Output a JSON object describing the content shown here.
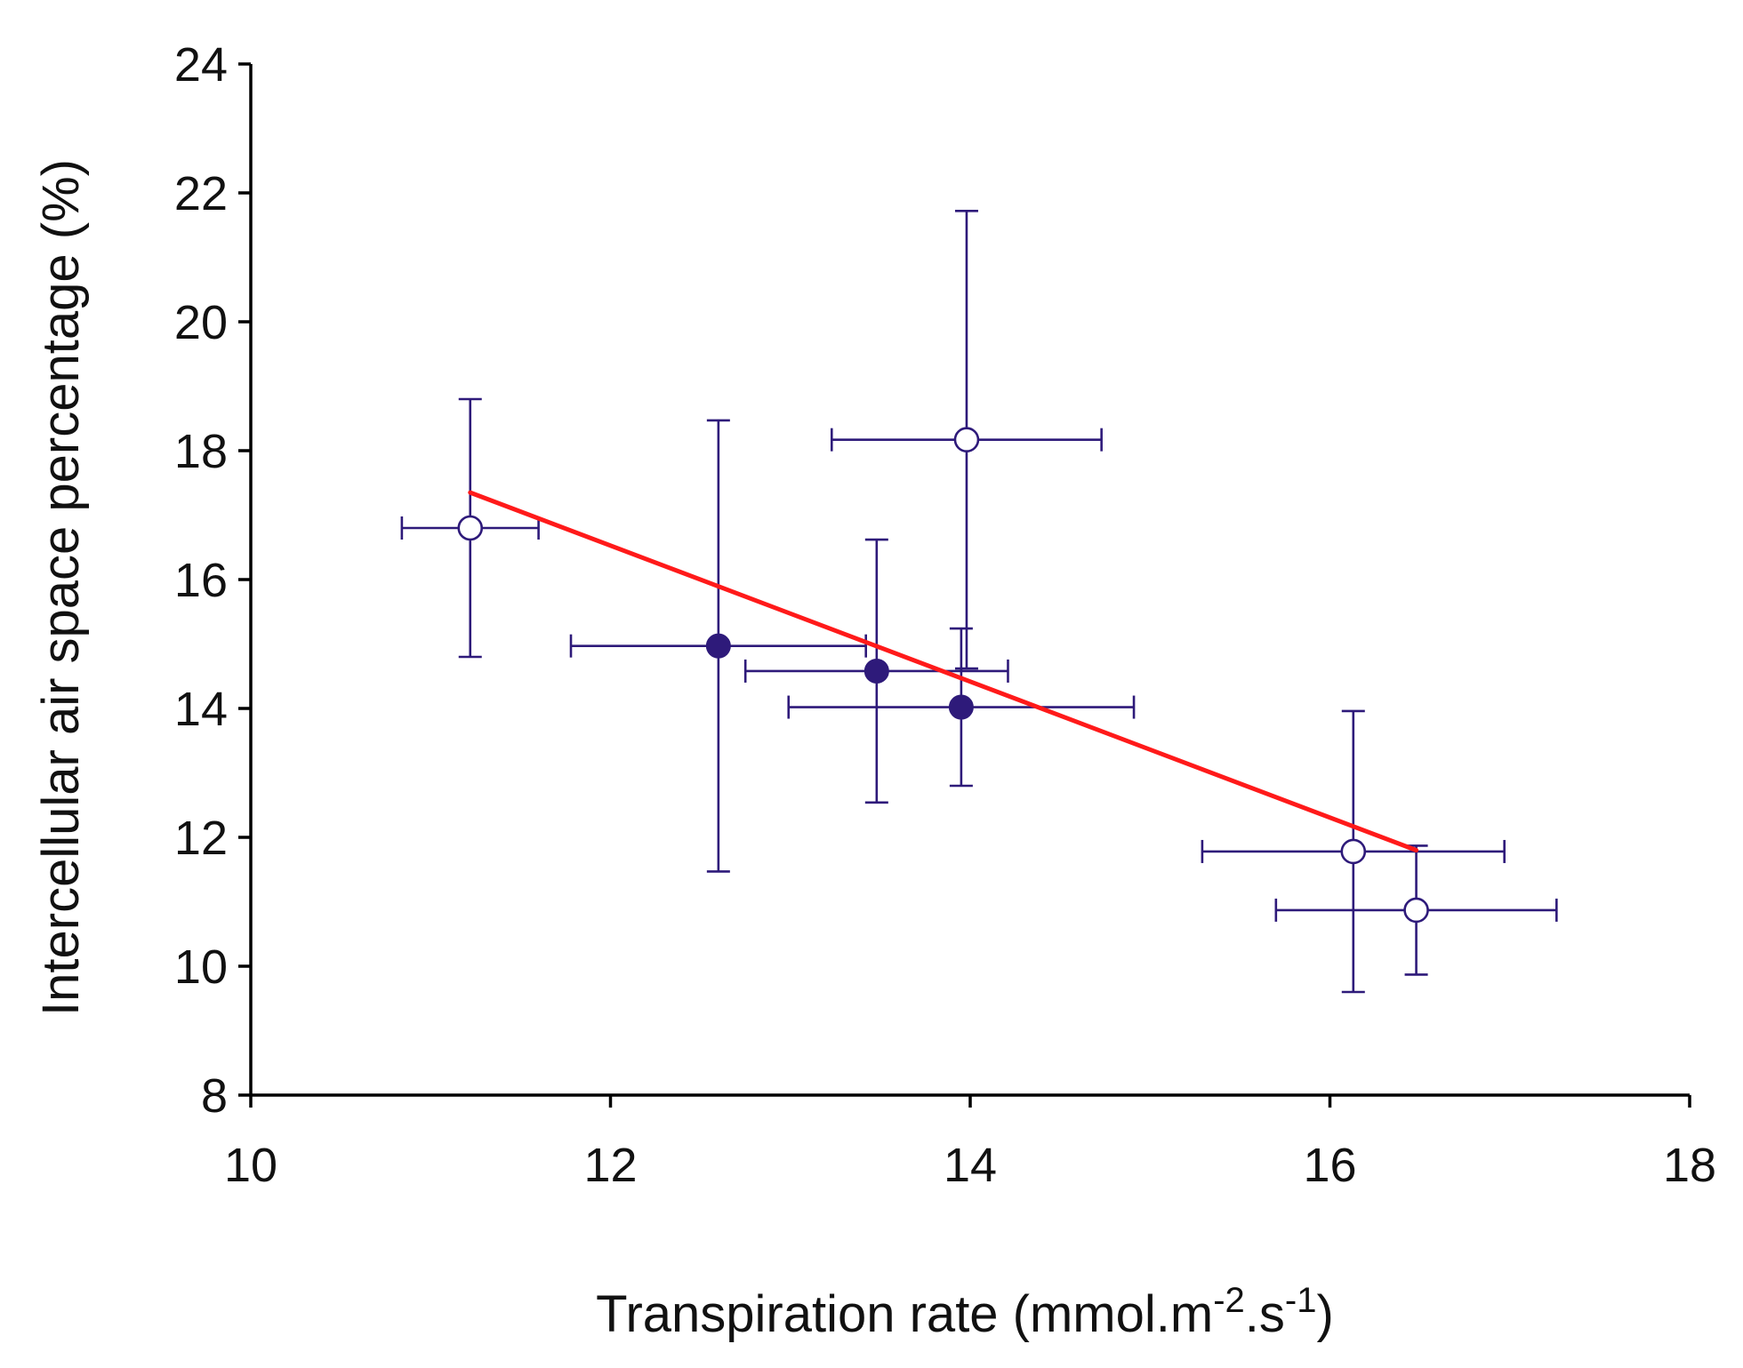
{
  "chart_data": {
    "type": "scatter",
    "xlabel": {
      "parts": [
        {
          "text": "Transpiration rate (mmol.m",
          "sup": false
        },
        {
          "text": "-2",
          "sup": true
        },
        {
          "text": ".s",
          "sup": false
        },
        {
          "text": "-1",
          "sup": true
        },
        {
          "text": ")",
          "sup": false
        }
      ]
    },
    "ylabel": "Intercellular air space percentage (%)",
    "xlim": [
      10,
      18
    ],
    "ylim": [
      8,
      24
    ],
    "xticks": [
      "10",
      "12",
      "14",
      "16",
      "18"
    ],
    "yticks": [
      "8",
      "10",
      "12",
      "14",
      "16",
      "18",
      "20",
      "22",
      "24"
    ],
    "grid": false,
    "legend": "none",
    "colors": {
      "points": "#2e1a7a",
      "trend": "#ff1a1a",
      "axis": "#000000"
    },
    "points": [
      {
        "x": 11.22,
        "y": 16.8,
        "xerr": 0.38,
        "yerr": 2.0,
        "filled": false
      },
      {
        "x": 13.98,
        "y": 18.17,
        "xerr": 0.75,
        "yerr": 3.55,
        "filled": false
      },
      {
        "x": 12.6,
        "y": 14.97,
        "xerr": 0.82,
        "yerr": 3.5,
        "filled": true
      },
      {
        "x": 13.48,
        "y": 14.58,
        "xerr": 0.73,
        "yerr": 2.04,
        "filled": true
      },
      {
        "x": 13.95,
        "y": 14.02,
        "xerr": 0.96,
        "yerr": 1.22,
        "filled": true
      },
      {
        "x": 16.13,
        "y": 11.78,
        "xerr": 0.84,
        "yerr": 2.18,
        "filled": false
      },
      {
        "x": 16.48,
        "y": 10.87,
        "xerr": 0.78,
        "yerr": 1.0,
        "filled": false
      }
    ],
    "trendline": {
      "x": [
        11.22,
        16.48
      ],
      "y": [
        17.35,
        11.8
      ]
    }
  }
}
